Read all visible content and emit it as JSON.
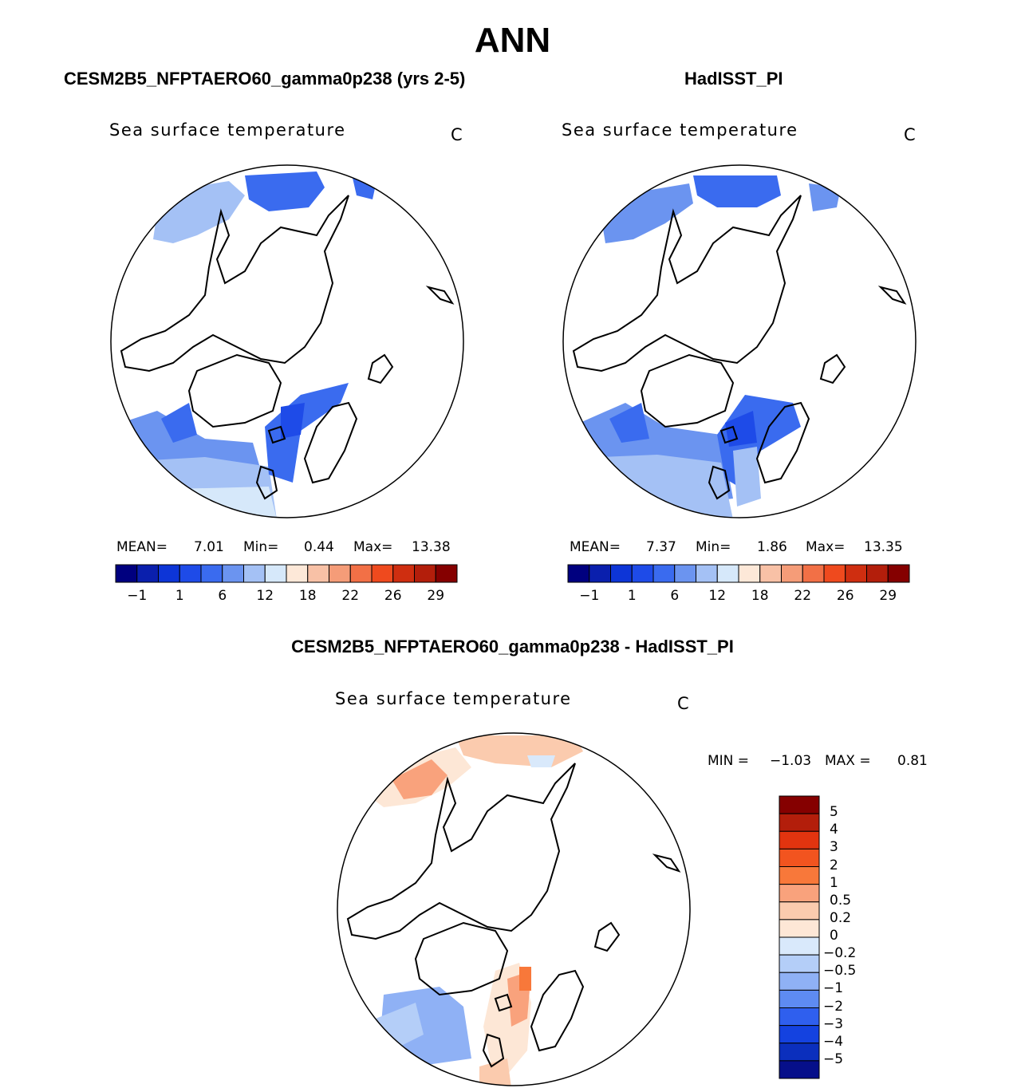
{
  "figure": {
    "title": "ANN"
  },
  "chart_data": [
    {
      "type": "heatmap",
      "panel": "model",
      "title": "CESM2B5_NFPTAERO60_gamma0p238 (yrs 2-5)",
      "variable_label": "Sea surface temperature",
      "units": "C",
      "projection": "north polar stereographic",
      "stats": {
        "mean_label": "MEAN=",
        "mean": "7.01",
        "min_label": "Min=",
        "min": "0.44",
        "max_label": "Max=",
        "max": "13.38"
      },
      "colorbar": {
        "orientation": "horizontal",
        "colors": [
          "#00007f",
          "#0a1fad",
          "#0d35d7",
          "#1e4be8",
          "#3a6bef",
          "#6b94f0",
          "#a4c1f5",
          "#d6e8fa",
          "#fde8d8",
          "#f8c1a6",
          "#f59c78",
          "#f27046",
          "#ef4a1e",
          "#cf2e10",
          "#b31e0b",
          "#850000"
        ],
        "tick_labels": [
          "−1",
          "1",
          "6",
          "12",
          "18",
          "22",
          "26",
          "29"
        ]
      }
    },
    {
      "type": "heatmap",
      "panel": "observations",
      "title": "HadISST_PI",
      "variable_label": "Sea surface temperature",
      "units": "C",
      "projection": "north polar stereographic",
      "stats": {
        "mean_label": "MEAN=",
        "mean": "7.37",
        "min_label": "Min=",
        "min": "1.86",
        "max_label": "Max=",
        "max": "13.35"
      },
      "colorbar": {
        "orientation": "horizontal",
        "colors": [
          "#00007f",
          "#0a1fad",
          "#0d35d7",
          "#1e4be8",
          "#3a6bef",
          "#6b94f0",
          "#a4c1f5",
          "#d6e8fa",
          "#fde8d8",
          "#f8c1a6",
          "#f59c78",
          "#f27046",
          "#ef4a1e",
          "#cf2e10",
          "#b31e0b",
          "#850000"
        ],
        "tick_labels": [
          "−1",
          "1",
          "6",
          "12",
          "18",
          "22",
          "26",
          "29"
        ]
      }
    },
    {
      "type": "heatmap",
      "panel": "difference",
      "title": "CESM2B5_NFPTAERO60_gamma0p238 - HadISST_PI",
      "variable_label": "Sea surface temperature",
      "units": "C",
      "projection": "north polar stereographic",
      "stats": {
        "min_label": "MIN =",
        "min": "−1.03",
        "max_label": "MAX =",
        "max": "0.81"
      },
      "colorbar": {
        "orientation": "vertical",
        "colors_top_to_bottom": [
          "#850000",
          "#b31e0b",
          "#e2340f",
          "#f2541f",
          "#f8783a",
          "#f9a27c",
          "#fbcbae",
          "#fde7d6",
          "#d9e9fb",
          "#b4cef8",
          "#8fb1f5",
          "#5e8bf2",
          "#2f5fee",
          "#1442e0",
          "#0b2fbd",
          "#060f8a"
        ],
        "tick_labels": [
          "5",
          "4",
          "3",
          "2",
          "1",
          "0.5",
          "0.2",
          "0",
          "−0.2",
          "−0.5",
          "−1",
          "−2",
          "−3",
          "−4",
          "−5"
        ]
      }
    }
  ]
}
